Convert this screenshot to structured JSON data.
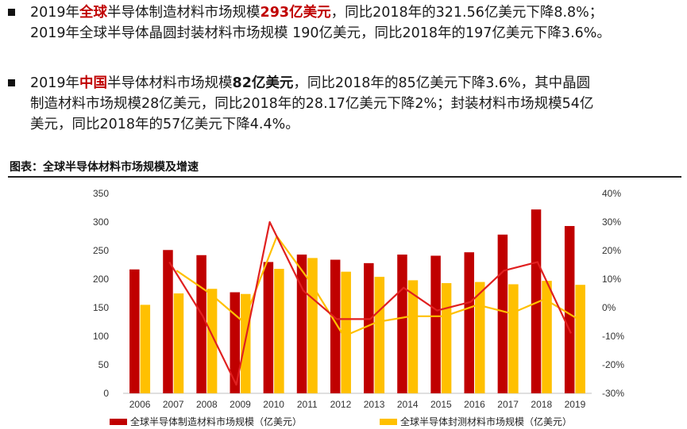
{
  "bullets": {
    "b1": {
      "l1": {
        "a": "2019年",
        "b": "全球",
        "c": "半导体制造材料市场规模",
        "d": "293亿美元",
        "e": "，同比2018年的321.56亿美元下降8.8%；"
      },
      "l2": "2019年全球半导体晶圆封装材料市场规模 190亿美元，同比2018年的197亿美元下降3.6%。"
    },
    "b2": {
      "l1": {
        "a": "2019年",
        "b": "中国",
        "c": "半导体材料市场规模",
        "d": "82亿美元",
        "e": "，同比2018年的85亿美元下降3.6%，其中晶圆"
      },
      "l2": "制造材料市场规模28亿美元，同比2018年的28.17亿美元下降2%；封装材料市场规模54亿",
      "l3": "美元，同比2018年的57亿美元下降4.4%。"
    }
  },
  "figure_title": "图表：全球半导体材料市场规模及增速",
  "colors": {
    "manufacturing": "#c00000",
    "packaging": "#ffc000",
    "mfg_line": "#e02020",
    "pkg_line": "#ffc000"
  },
  "chart_data": {
    "type": "bar",
    "categories": [
      "2006",
      "2007",
      "2008",
      "2009",
      "2010",
      "2011",
      "2012",
      "2013",
      "2014",
      "2015",
      "2016",
      "2017",
      "2018",
      "2019"
    ],
    "series": [
      {
        "name": "全球半导体制造材料市场规模（亿美元）",
        "type": "bar",
        "values": [
          217,
          251,
          242,
          177,
          230,
          243,
          234,
          228,
          243,
          241,
          247,
          278,
          322,
          293
        ]
      },
      {
        "name": "全球半导体封测材料市场规模（亿美元）",
        "type": "bar",
        "values": [
          155,
          175,
          183,
          174,
          218,
          237,
          213,
          204,
          198,
          193,
          195,
          191,
          197,
          190
        ]
      },
      {
        "type": "line",
        "axis": "right",
        "values": [
          null,
          16,
          -3,
          -27,
          30,
          6,
          -4,
          -4,
          7,
          -1,
          2,
          13,
          16,
          -9
        ]
      },
      {
        "type": "line",
        "axis": "right",
        "values": [
          null,
          13,
          5,
          -5,
          25,
          9,
          -10,
          -5,
          -3,
          -3,
          1,
          -2,
          3,
          -4
        ]
      }
    ],
    "y_left": {
      "ticks": [
        "0",
        "50",
        "100",
        "150",
        "200",
        "250",
        "300",
        "350"
      ],
      "range": [
        0,
        350
      ]
    },
    "y_right": {
      "ticks": [
        "-30%",
        "-20%",
        "-10%",
        "0%",
        "10%",
        "20%",
        "30%",
        "40%"
      ],
      "range": [
        -30,
        40
      ]
    },
    "legend": {
      "position": "bottom",
      "items": [
        "全球半导体制造材料市场规模（亿美元）",
        "全球半导体封测材料市场规模（亿美元）"
      ]
    }
  }
}
